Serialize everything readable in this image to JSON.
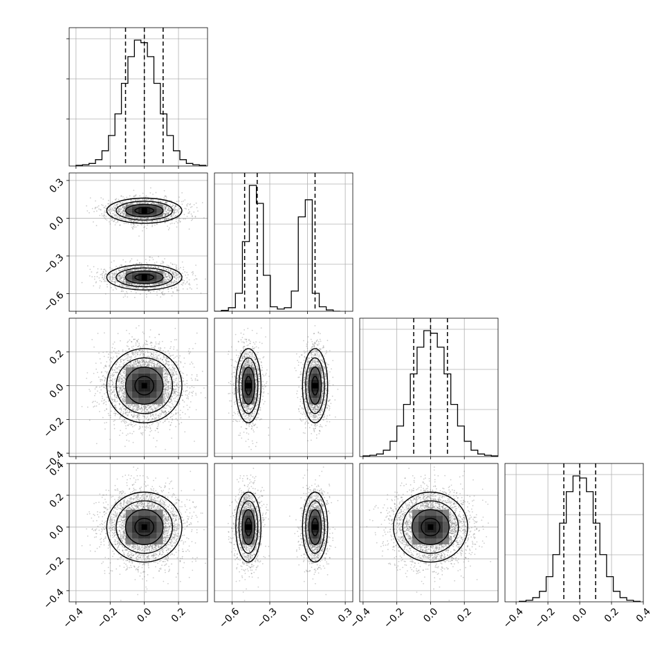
{
  "chart_data": {
    "type": "corner",
    "title": "",
    "n_params": 4,
    "grid": true,
    "colors": {
      "frame": "#000000",
      "grid": "#b0b0b0",
      "hist": "#000000",
      "scatter": "#6e6e6e",
      "density": "#000000"
    },
    "x_ticks": [
      [
        "−0.4",
        "−0.2",
        "0.0",
        "0.2"
      ],
      [
        "−0.6",
        "−0.3",
        "0.0",
        "0.3"
      ],
      [
        "−0.4",
        "−0.2",
        "0.0",
        "0.2"
      ],
      [
        "−0.4",
        "−0.2",
        "0.0",
        "0.2",
        "0.4"
      ]
    ],
    "y_ticks": [
      [
        "",
        "",
        "",
        ""
      ],
      [
        "0.3",
        "0.0",
        "−0.3",
        "−0.6"
      ],
      [
        "0.2",
        "0.0",
        "−0.2",
        "−0.4"
      ],
      [
        "0.4",
        "0.2",
        "0.0",
        "−0.2",
        "−0.4"
      ]
    ],
    "ranges": [
      [
        -0.44,
        0.37
      ],
      [
        -0.74,
        0.36
      ],
      [
        -0.42,
        0.4
      ],
      [
        -0.47,
        0.4
      ]
    ],
    "marginals": [
      {
        "bins_lo": -0.4,
        "bins_hi": 0.36,
        "counts": [
          1,
          2,
          4,
          10,
          24,
          48,
          82,
          130,
          172,
          198,
          194,
          172,
          130,
          82,
          48,
          24,
          10,
          4,
          2,
          1
        ],
        "quantiles": [
          -0.11,
          0.0,
          0.11
        ]
      },
      {
        "bins_lo": -0.74,
        "bins_hi": 0.26,
        "counts": [
          0,
          2,
          8,
          40,
          155,
          280,
          240,
          80,
          10,
          5,
          8,
          45,
          210,
          248,
          40,
          10,
          3,
          0
        ],
        "quantiles": [
          -0.5,
          -0.4,
          0.06
        ]
      },
      {
        "bins_lo": -0.4,
        "bins_hi": 0.4,
        "counts": [
          1,
          2,
          4,
          10,
          24,
          48,
          82,
          130,
          172,
          198,
          194,
          172,
          130,
          82,
          48,
          24,
          10,
          4,
          2,
          1
        ],
        "quantiles": [
          -0.1,
          0.0,
          0.1
        ]
      },
      {
        "bins_lo": -0.38,
        "bins_hi": 0.38,
        "counts": [
          1,
          3,
          8,
          20,
          48,
          90,
          150,
          210,
          240,
          236,
          210,
          150,
          90,
          48,
          20,
          8,
          3,
          1
        ],
        "quantiles": [
          -0.1,
          0.0,
          0.1
        ]
      }
    ],
    "modes": [
      [
        0.0
      ],
      [
        -0.47,
        0.06
      ],
      [
        0.0
      ],
      [
        0.0
      ]
    ],
    "widths": [
      0.11,
      0.05,
      0.11,
      0.11
    ]
  }
}
